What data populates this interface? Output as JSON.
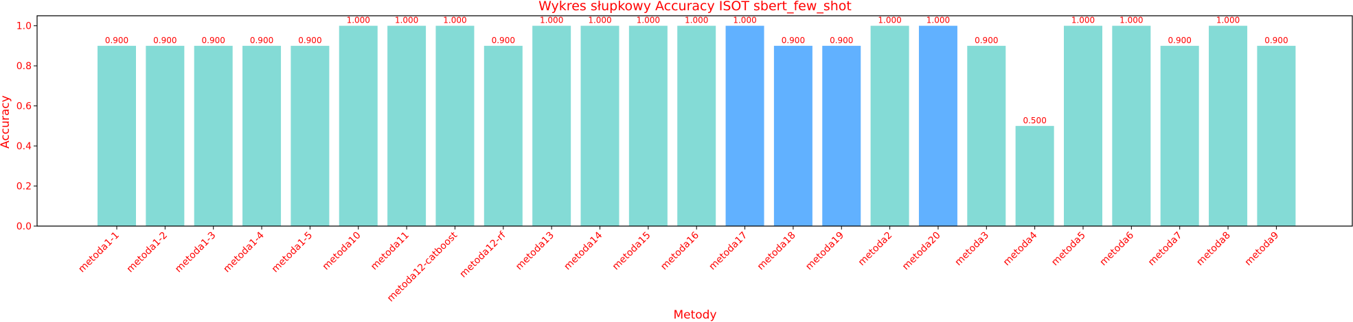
{
  "chart_data": {
    "type": "bar",
    "title": "Wykres słupkowy Accuracy ISOT sbert_few_shot",
    "xlabel": "Metody",
    "ylabel": "Accuracy",
    "ylim": [
      0,
      1.05
    ],
    "yticks": [
      0.0,
      0.2,
      0.4,
      0.6,
      0.8,
      1.0
    ],
    "ytick_labels": [
      "0.0",
      "0.2",
      "0.4",
      "0.6",
      "0.8",
      "1.0"
    ],
    "grid": false,
    "categories": [
      "metoda1-1",
      "metoda1-2",
      "metoda1-3",
      "metoda1-4",
      "metoda1-5",
      "metoda10",
      "metoda11",
      "metoda12-catboost",
      "metoda12-rf",
      "metoda13",
      "metoda14",
      "metoda15",
      "metoda16",
      "metoda17",
      "metoda18",
      "metoda19",
      "metoda2",
      "metoda20",
      "metoda3",
      "metoda4",
      "metoda5",
      "metoda6",
      "metoda7",
      "metoda8",
      "metoda9"
    ],
    "values": [
      0.9,
      0.9,
      0.9,
      0.9,
      0.9,
      1.0,
      1.0,
      1.0,
      0.9,
      1.0,
      1.0,
      1.0,
      1.0,
      1.0,
      0.9,
      0.9,
      1.0,
      1.0,
      0.9,
      0.5,
      1.0,
      1.0,
      0.9,
      1.0,
      0.9
    ],
    "value_labels": [
      "0.900",
      "0.900",
      "0.900",
      "0.900",
      "0.900",
      "1.000",
      "1.000",
      "1.000",
      "0.900",
      "1.000",
      "1.000",
      "1.000",
      "1.000",
      "1.000",
      "0.900",
      "0.900",
      "1.000",
      "1.000",
      "0.900",
      "0.500",
      "1.000",
      "1.000",
      "0.900",
      "1.000",
      "0.900"
    ],
    "highlighted": [
      false,
      false,
      false,
      false,
      false,
      false,
      false,
      false,
      false,
      false,
      false,
      false,
      false,
      true,
      true,
      true,
      false,
      true,
      false,
      false,
      false,
      false,
      false,
      false,
      false
    ],
    "colors": {
      "bar": "#84dbd6",
      "highlight": "#61b1ff",
      "text": "#ff0000",
      "axis": "#000000"
    }
  }
}
